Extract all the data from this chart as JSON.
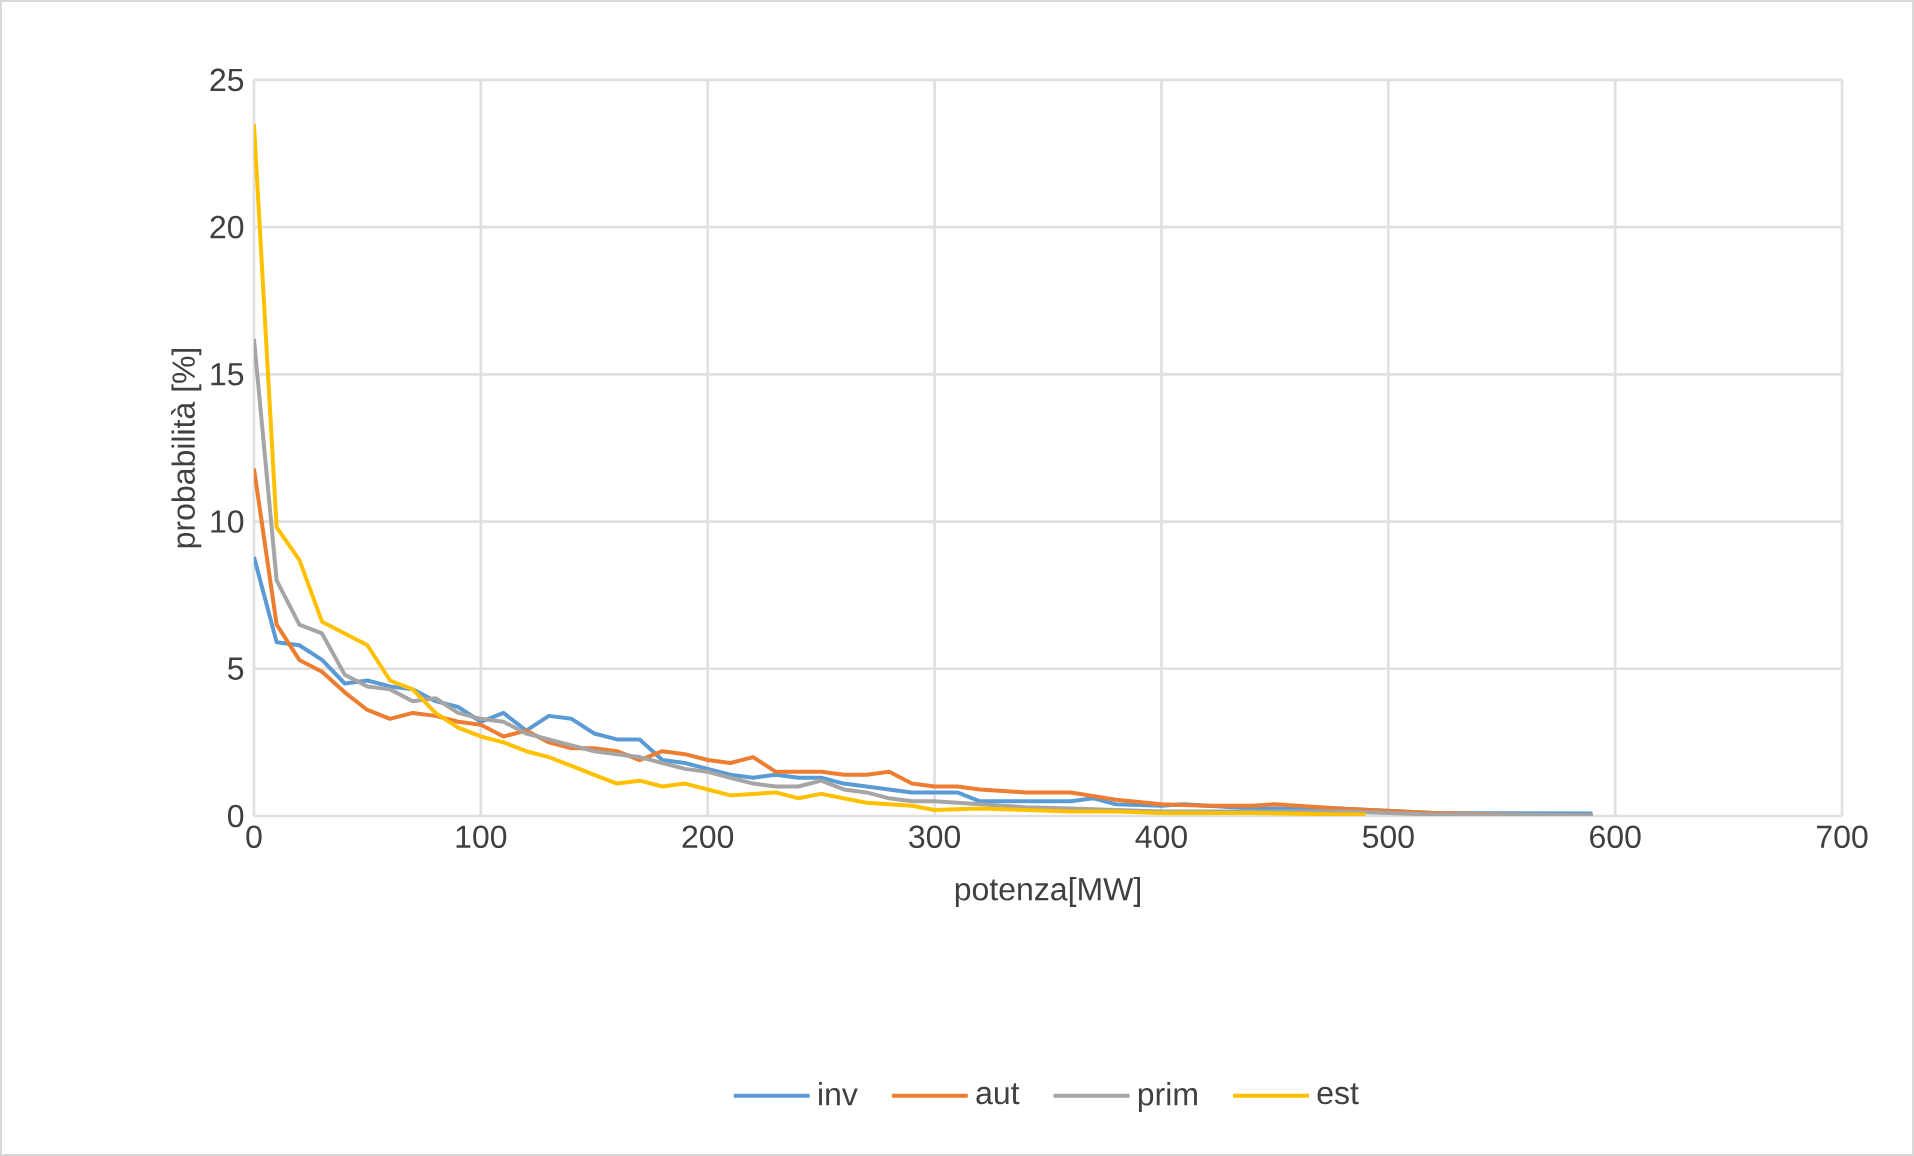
{
  "chart_data": {
    "type": "line",
    "xlabel": "potenza[MW]",
    "ylabel": "probabilità [%]",
    "xlim": [
      0,
      700
    ],
    "xticks": [
      0,
      100,
      200,
      300,
      400,
      500,
      600,
      700
    ],
    "ylim": [
      0,
      25
    ],
    "yticks": [
      0,
      5,
      10,
      15,
      20,
      25
    ],
    "grid": true,
    "legend": "bottom",
    "marker": "none",
    "line_style": "solid",
    "series": [
      {
        "name": "inv",
        "color": "#5b9bd5",
        "x": [
          0,
          10,
          20,
          30,
          40,
          50,
          60,
          70,
          80,
          90,
          100,
          110,
          120,
          130,
          140,
          150,
          160,
          170,
          180,
          190,
          200,
          210,
          220,
          230,
          240,
          250,
          260,
          270,
          280,
          290,
          300,
          310,
          320,
          340,
          360,
          370,
          380,
          400,
          410,
          440,
          480,
          520,
          560,
          590
        ],
        "values": [
          8.8,
          5.9,
          5.8,
          5.3,
          4.5,
          4.6,
          4.4,
          4.3,
          3.9,
          3.7,
          3.2,
          3.5,
          2.9,
          3.4,
          3.3,
          2.8,
          2.6,
          2.6,
          1.9,
          1.8,
          1.6,
          1.4,
          1.3,
          1.4,
          1.3,
          1.3,
          1.1,
          1.0,
          0.9,
          0.8,
          0.8,
          0.8,
          0.5,
          0.5,
          0.5,
          0.6,
          0.4,
          0.35,
          0.4,
          0.25,
          0.25,
          0.1,
          0.09,
          0.08
        ]
      },
      {
        "name": "aut",
        "color": "#ed7d31",
        "x": [
          0,
          10,
          20,
          30,
          40,
          50,
          60,
          70,
          80,
          90,
          100,
          110,
          120,
          130,
          140,
          150,
          160,
          170,
          180,
          190,
          200,
          210,
          220,
          230,
          240,
          250,
          260,
          270,
          280,
          290,
          300,
          310,
          320,
          340,
          360,
          380,
          400,
          420,
          440,
          450,
          480,
          520,
          560,
          590
        ],
        "values": [
          11.8,
          6.5,
          5.3,
          4.9,
          4.2,
          3.6,
          3.3,
          3.5,
          3.4,
          3.2,
          3.1,
          2.7,
          2.9,
          2.5,
          2.3,
          2.3,
          2.2,
          1.9,
          2.2,
          2.1,
          1.9,
          1.8,
          2.0,
          1.5,
          1.5,
          1.5,
          1.4,
          1.4,
          1.5,
          1.1,
          1.0,
          1.0,
          0.9,
          0.8,
          0.8,
          0.55,
          0.4,
          0.35,
          0.35,
          0.4,
          0.25,
          0.1,
          0.03,
          0.02
        ]
      },
      {
        "name": "prim",
        "color": "#a5a5a5",
        "x": [
          0,
          10,
          20,
          30,
          40,
          50,
          60,
          70,
          80,
          90,
          100,
          110,
          120,
          130,
          140,
          150,
          160,
          170,
          180,
          190,
          200,
          210,
          220,
          230,
          240,
          250,
          260,
          270,
          280,
          290,
          300,
          320,
          340,
          360,
          380,
          400,
          440,
          480,
          520,
          560,
          590
        ],
        "values": [
          16.2,
          8.0,
          6.5,
          6.2,
          4.8,
          4.4,
          4.3,
          3.9,
          4.0,
          3.5,
          3.3,
          3.2,
          2.8,
          2.6,
          2.4,
          2.2,
          2.1,
          2.0,
          1.8,
          1.6,
          1.5,
          1.3,
          1.1,
          1.0,
          1.0,
          1.2,
          0.9,
          0.8,
          0.6,
          0.5,
          0.5,
          0.4,
          0.3,
          0.25,
          0.2,
          0.15,
          0.15,
          0.15,
          0.05,
          0.05,
          0.02
        ]
      },
      {
        "name": "est",
        "color": "#ffc000",
        "x": [
          0,
          10,
          20,
          30,
          40,
          50,
          60,
          70,
          80,
          90,
          100,
          110,
          120,
          130,
          140,
          150,
          160,
          170,
          180,
          190,
          200,
          210,
          220,
          230,
          240,
          250,
          260,
          270,
          280,
          290,
          300,
          320,
          340,
          360,
          380,
          400,
          440,
          480,
          490
        ],
        "values": [
          23.5,
          9.8,
          8.7,
          6.6,
          6.2,
          5.8,
          4.6,
          4.3,
          3.5,
          3.0,
          2.7,
          2.5,
          2.2,
          2.0,
          1.7,
          1.4,
          1.1,
          1.2,
          1.0,
          1.1,
          0.9,
          0.7,
          0.75,
          0.8,
          0.6,
          0.75,
          0.6,
          0.45,
          0.4,
          0.35,
          0.2,
          0.25,
          0.2,
          0.15,
          0.15,
          0.1,
          0.1,
          0.05,
          0.05
        ]
      }
    ]
  }
}
